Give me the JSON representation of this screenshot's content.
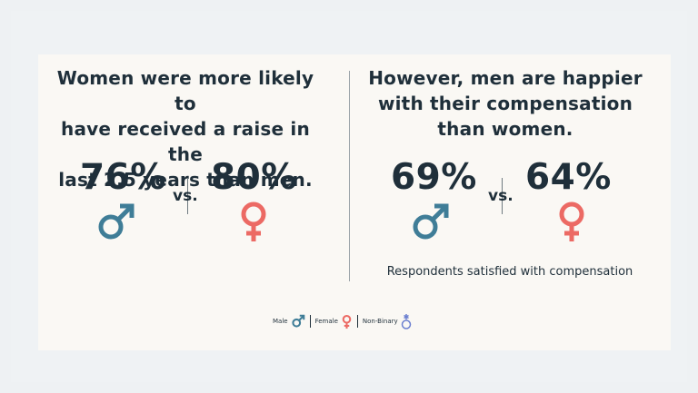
{
  "left_panel": {
    "title_lines": [
      "Women were more likely to",
      "have received a raise in the",
      "last 2.5 years than men."
    ],
    "male_value": "76%",
    "vs": "vs.",
    "female_value": "80%"
  },
  "right_panel": {
    "title_lines": [
      "However, men are happier",
      "with their compensation",
      "than women."
    ],
    "male_value": "69%",
    "vs": "vs.",
    "female_value": "64%",
    "caption": "Respondents satisfied with compensation"
  },
  "legend": {
    "male_label": "Male",
    "female_label": "Female",
    "nonbinary_label": "Non-Binary"
  },
  "colors": {
    "male": "#3f7d97",
    "female": "#ec6a64",
    "nonbinary": "#6b7fd0",
    "text": "#1f2f3a"
  }
}
